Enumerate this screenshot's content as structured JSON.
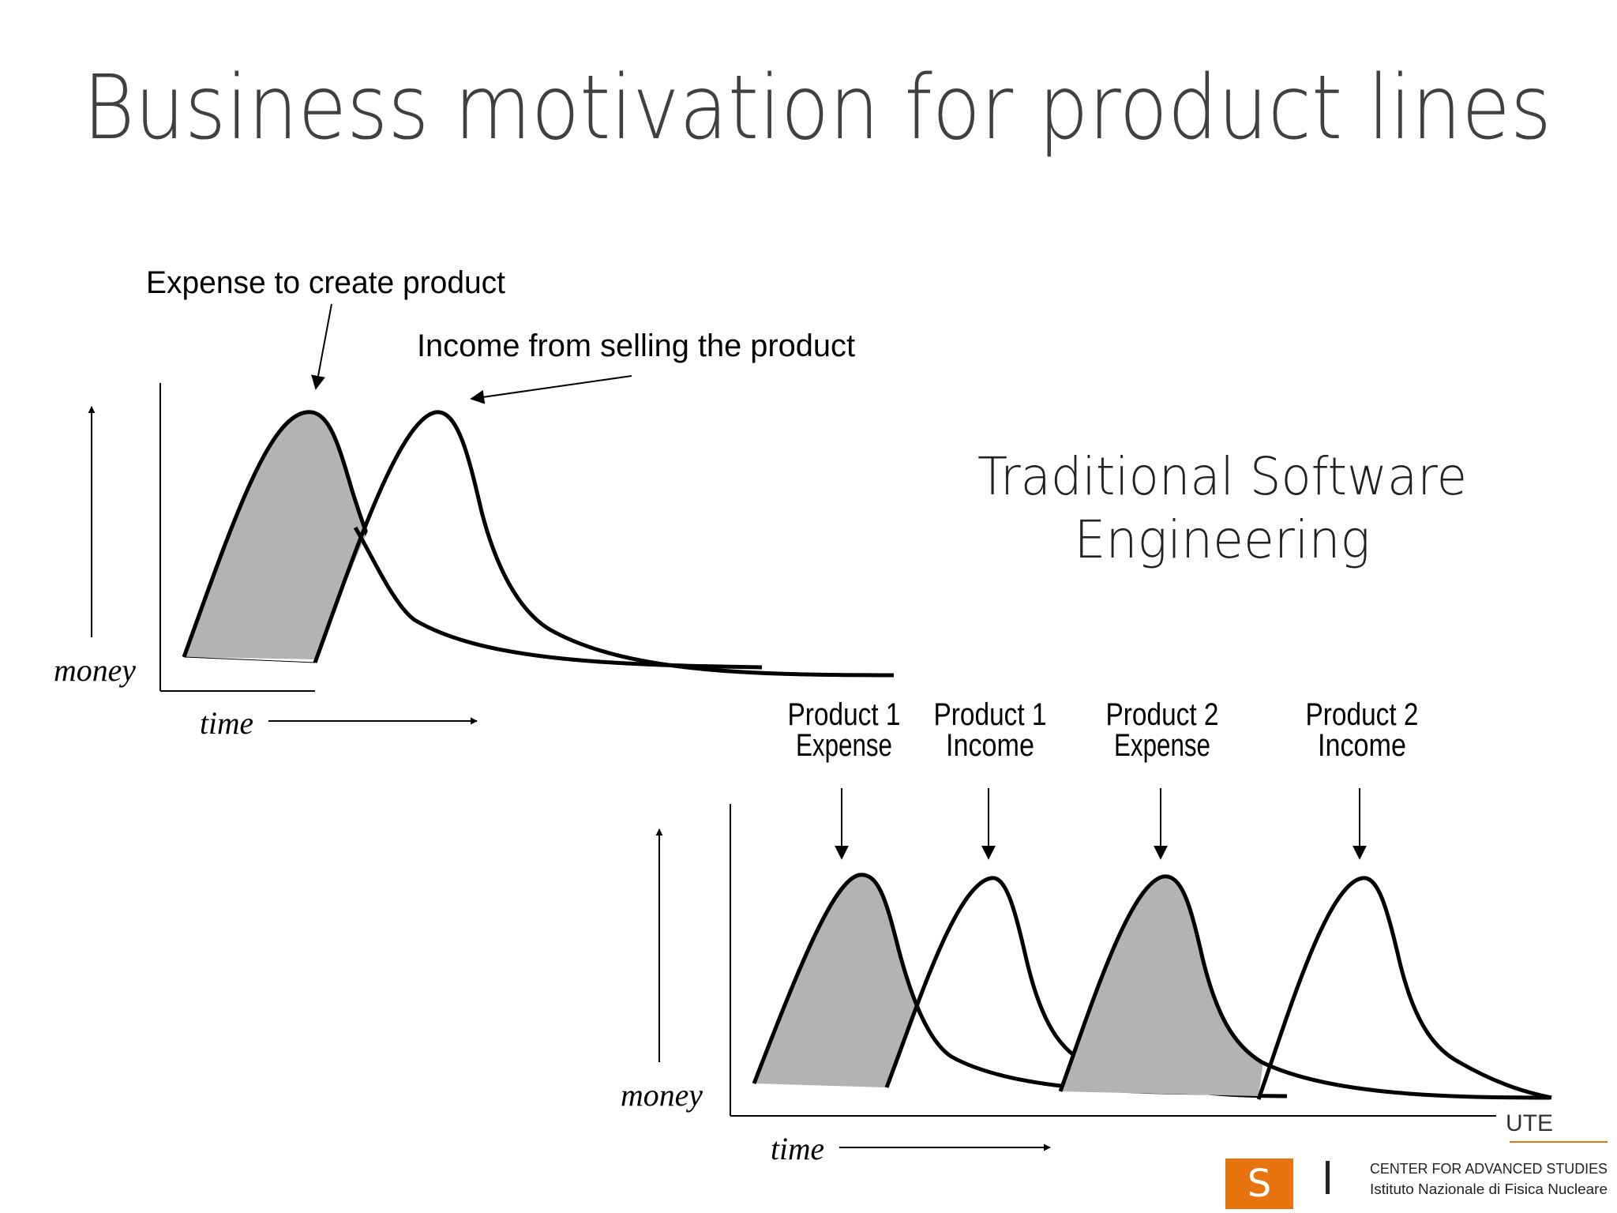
{
  "title": "Business motivation for product lines",
  "subtitle": {
    "line1": "Traditional Software",
    "line2": "Engineering"
  },
  "top_diagram": {
    "expense_label": "Expense to create product",
    "income_label": "Income from selling the product",
    "y_axis_label": "money",
    "x_axis_label": "time"
  },
  "bottom_diagram": {
    "labels": [
      {
        "line1": "Product 1",
        "line2": "Expense"
      },
      {
        "line1": "Product 1",
        "line2": "Income"
      },
      {
        "line1": "Product 2",
        "line2": "Expense"
      },
      {
        "line1": "Product 2",
        "line2": "Income"
      }
    ],
    "y_axis_label": "money",
    "x_axis_label": "time"
  },
  "footer": {
    "clipped_text": "UTE",
    "org_line1": "CENTER FOR ADVANCED STUDIES",
    "org_line2": "Istituto Nazionale di Fisica Nucleare",
    "logo_letter": "S",
    "logo_color": "#e8740f"
  }
}
